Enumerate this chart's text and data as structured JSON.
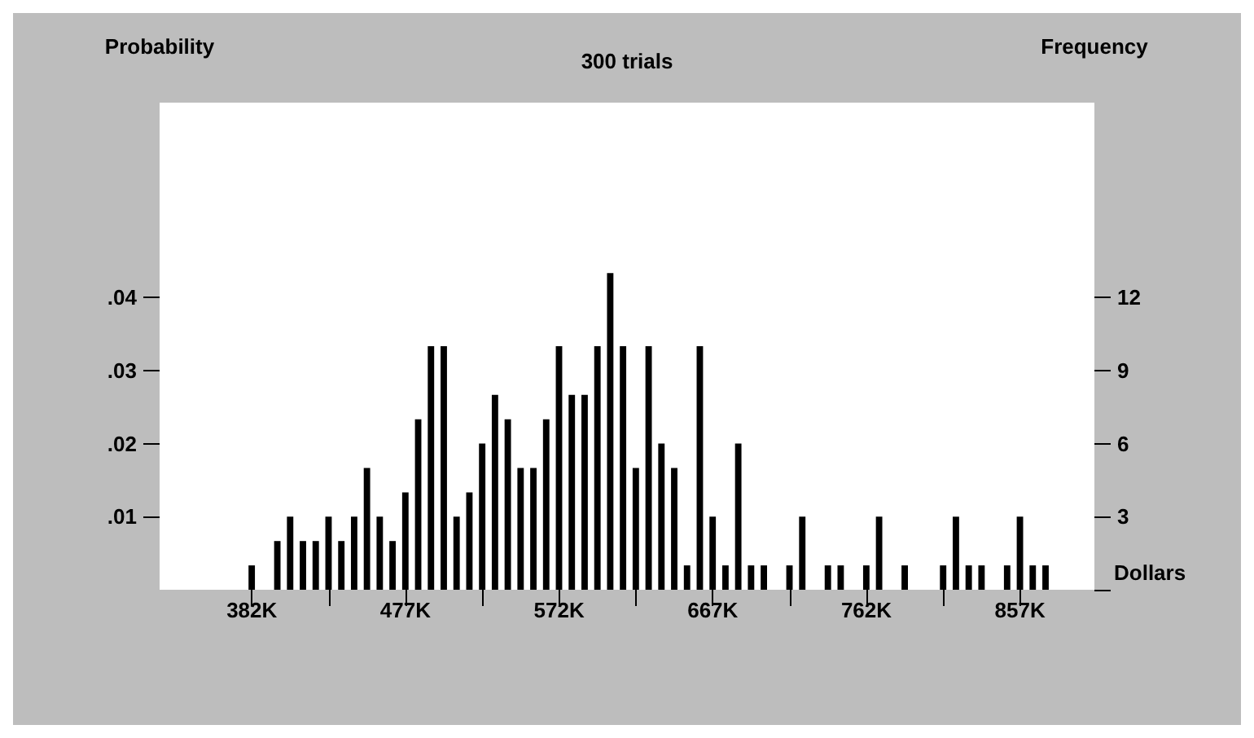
{
  "chart_data": {
    "type": "histogram",
    "title": "300 trials",
    "xlabel": "Dollars",
    "ylabel": "Probability",
    "y2label": "Frequency",
    "bins": [
      378.0,
      385.92,
      393.83,
      401.75,
      409.67,
      417.58,
      425.5,
      433.42,
      441.33,
      449.25,
      457.17,
      465.08,
      473.0,
      480.92,
      488.83,
      496.75,
      504.67,
      512.58,
      520.5,
      528.42,
      536.33,
      544.25,
      552.17,
      560.08,
      568.0,
      575.92,
      583.83,
      591.75,
      599.67,
      607.58,
      615.5,
      623.42,
      631.33,
      639.25,
      647.17,
      655.08,
      663.0,
      670.92,
      678.83,
      686.75,
      694.67,
      702.58,
      710.5,
      718.42,
      726.33,
      734.25,
      742.17,
      750.08,
      758.0,
      765.92,
      773.83,
      781.75,
      789.67,
      797.58,
      805.5,
      813.42,
      821.33,
      829.25,
      837.17,
      845.08,
      853.0,
      860.92,
      868.83,
      876.75
    ],
    "series": [
      {
        "color": "#000000",
        "axis": "y2",
        "values": [
          1,
          0,
          2,
          3,
          2,
          2,
          3,
          2,
          3,
          5,
          3,
          2,
          4,
          7,
          10,
          10,
          3,
          4,
          6,
          8,
          7,
          5,
          5,
          7,
          10,
          8,
          8,
          10,
          13,
          10,
          5,
          10,
          6,
          5,
          1,
          10,
          3,
          1,
          6,
          1,
          1,
          0,
          1,
          3,
          0,
          1,
          1,
          0,
          1,
          3,
          0,
          1,
          0,
          0,
          1,
          3,
          1,
          1,
          0,
          1,
          3,
          1,
          1
        ]
      }
    ],
    "xlim": [
      325,
      903
    ],
    "xticks": [
      {
        "value": 382,
        "label": "382K"
      },
      {
        "value": 429.5,
        "label": null
      },
      {
        "value": 477,
        "label": "477K"
      },
      {
        "value": 524.5,
        "label": null
      },
      {
        "value": 572,
        "label": "572K"
      },
      {
        "value": 619.5,
        "label": null
      },
      {
        "value": 667,
        "label": "667K"
      },
      {
        "value": 714.5,
        "label": null
      },
      {
        "value": 762,
        "label": "762K"
      },
      {
        "value": 809.5,
        "label": null
      },
      {
        "value": 857,
        "label": "857K"
      }
    ],
    "ylim": [
      0,
      0.0667
    ],
    "yticks": [
      {
        "value": 0.01,
        "label": ".01"
      },
      {
        "value": 0.02,
        "label": ".02"
      },
      {
        "value": 0.03,
        "label": ".03"
      },
      {
        "value": 0.04,
        "label": ".04"
      }
    ],
    "y2lim": [
      0,
      20
    ],
    "y2ticks": [
      {
        "value": 0,
        "label": null
      },
      3,
      6,
      9,
      12
    ],
    "grid": false
  }
}
